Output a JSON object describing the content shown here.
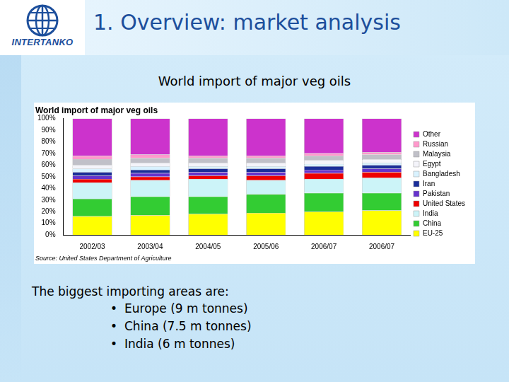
{
  "slide": {
    "logo_text": "INTERTANKO",
    "title": "1. Overview: market analysis",
    "subtitle": "World import of major veg oils",
    "intro": "The biggest importing areas are:",
    "bullets": [
      "Europe (9 m tonnes)",
      "China (7.5 m tonnes)",
      "India (6 m tonnes)"
    ]
  },
  "chart_data": {
    "type": "bar",
    "title": "World import of major veg oils",
    "source": "Source: United States Department of Agriculture",
    "categories": [
      "2002/03",
      "2003/04",
      "2004/05",
      "2005/06",
      "2006/07",
      "2006/07"
    ],
    "series": [
      {
        "name": "EU-25",
        "color": "#ffff00",
        "values": [
          16,
          17,
          18,
          19,
          20,
          21
        ]
      },
      {
        "name": "China",
        "color": "#33cc33",
        "values": [
          15,
          16,
          15,
          16,
          16,
          15
        ]
      },
      {
        "name": "India",
        "color": "#ccf4f8",
        "values": [
          14,
          14,
          15,
          12,
          12,
          13
        ]
      },
      {
        "name": "United States",
        "color": "#ee0000",
        "values": [
          3,
          3,
          3,
          4,
          5,
          5
        ]
      },
      {
        "name": "Pakistan",
        "color": "#6633cc",
        "values": [
          3,
          3,
          3,
          3,
          3,
          3
        ]
      },
      {
        "name": "Iran",
        "color": "#1a2e99",
        "values": [
          3,
          3,
          3,
          3,
          3,
          3
        ]
      },
      {
        "name": "Bangladesh",
        "color": "#d9f2ff",
        "values": [
          3,
          3,
          2,
          2,
          2,
          2
        ]
      },
      {
        "name": "Egypt",
        "color": "#f4f4fa",
        "values": [
          3,
          3,
          3,
          3,
          3,
          3
        ]
      },
      {
        "name": "Malaysia",
        "color": "#c0c0c8",
        "values": [
          5,
          4,
          4,
          4,
          4,
          4
        ]
      },
      {
        "name": "Russian",
        "color": "#ff99cc",
        "values": [
          3,
          3,
          2,
          2,
          2,
          2
        ]
      },
      {
        "name": "Other",
        "color": "#cc33cc",
        "values": [
          32,
          31,
          32,
          32,
          30,
          29
        ]
      }
    ],
    "stacked": true,
    "grid": false,
    "legend": "right",
    "ylim": [
      0,
      100
    ],
    "yticks": [
      {
        "value": 0,
        "label": "0%"
      },
      {
        "value": 10,
        "label": "10%"
      },
      {
        "value": 20,
        "label": "20%"
      },
      {
        "value": 30,
        "label": "30%"
      },
      {
        "value": 40,
        "label": "40%"
      },
      {
        "value": 50,
        "label": "50%"
      },
      {
        "value": 60,
        "label": "60%"
      },
      {
        "value": 70,
        "label": "70%"
      },
      {
        "value": 80,
        "label": "80%"
      },
      {
        "value": 90,
        "label": "90%"
      },
      {
        "value": 100,
        "label": "100%"
      }
    ]
  }
}
